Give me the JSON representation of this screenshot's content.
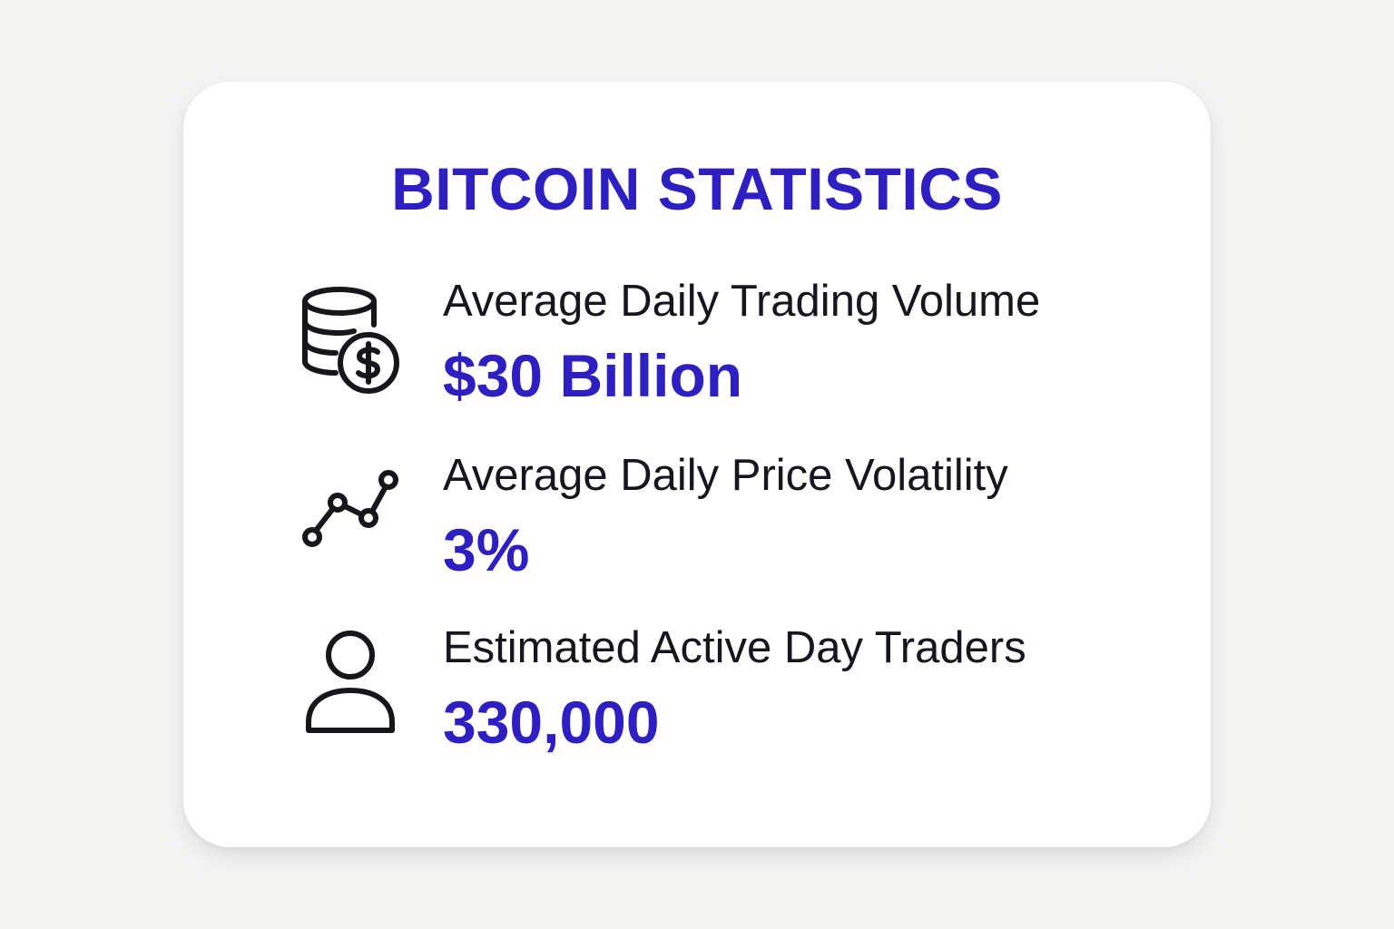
{
  "title": "BITCOIN STATISTICS",
  "accent_color": "#2d1fc2",
  "stats": [
    {
      "icon": "coins-dollar-icon",
      "label": "Average Daily Trading Volume",
      "value": "$30 Billion"
    },
    {
      "icon": "trend-line-icon",
      "label": "Average Daily Price Volatility",
      "value": "3%"
    },
    {
      "icon": "person-icon",
      "label": "Estimated Active Day Traders",
      "value": "330,000"
    }
  ]
}
